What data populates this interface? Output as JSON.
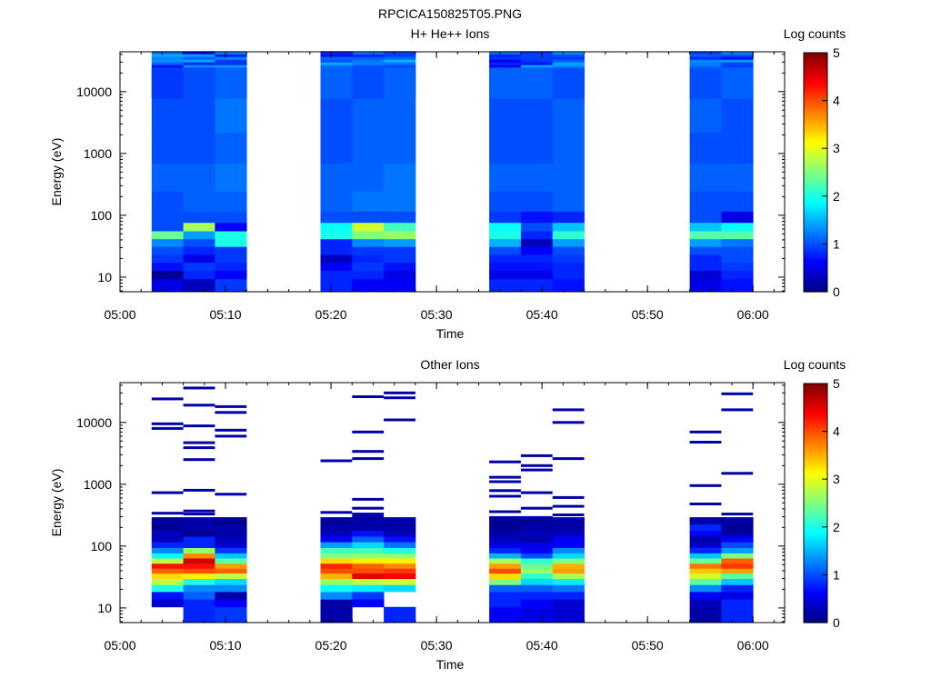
{
  "figure_title": "RPCICA150825T05.PNG",
  "chart_data": [
    {
      "type": "heatmap",
      "title": "H+ He++ Ions",
      "xlabel": "Time",
      "ylabel": "Energy (eV)",
      "x_ticks": [
        "05:00",
        "05:10",
        "05:20",
        "05:30",
        "05:40",
        "05:50",
        "06:00"
      ],
      "y_scale": "log",
      "y_ticks": [
        "10",
        "100",
        "1000",
        "10000"
      ],
      "colorbar": {
        "label": "Log counts",
        "ticks": [
          "0",
          "1",
          "2",
          "3",
          "4",
          "5"
        ],
        "range": [
          0,
          5
        ]
      },
      "time_blocks": [
        {
          "start": "05:03",
          "end": "05:06"
        },
        {
          "start": "05:06",
          "end": "05:09"
        },
        {
          "start": "05:09",
          "end": "05:12"
        },
        {
          "start": "05:19",
          "end": "05:22"
        },
        {
          "start": "05:22",
          "end": "05:25"
        },
        {
          "start": "05:25",
          "end": "05:28"
        },
        {
          "start": "05:35",
          "end": "05:38"
        },
        {
          "start": "05:38",
          "end": "05:41"
        },
        {
          "start": "05:41",
          "end": "05:44"
        },
        {
          "start": "05:54",
          "end": "05:57"
        },
        {
          "start": "05:57",
          "end": "06:00"
        }
      ],
      "energy_bins_eV": [
        8,
        11,
        15,
        20,
        27,
        36,
        48,
        65,
        90,
        150,
        400,
        1200,
        4000,
        15000,
        40000
      ],
      "log_counts": [
        [
          0.5,
          0.1,
          0.7,
          0.9,
          1.0,
          1.3,
          2.4,
          1.0,
          1.0,
          1.0,
          1.1,
          1.0,
          1.0,
          0.9,
          1.1
        ],
        [
          0.3,
          0.8,
          0.9,
          0.5,
          0.8,
          1.0,
          1.4,
          2.7,
          1.0,
          1.1,
          1.1,
          1.0,
          1.0,
          1.0,
          1.0
        ],
        [
          0.9,
          0.6,
          0.8,
          0.9,
          0.9,
          2.0,
          2.0,
          0.6,
          1.0,
          1.1,
          1.2,
          1.1,
          1.2,
          1.1,
          1.2
        ],
        [
          0.8,
          0.8,
          0.6,
          0.3,
          0.8,
          0.8,
          2.0,
          1.9,
          1.0,
          1.1,
          1.1,
          1.0,
          1.0,
          1.1,
          1.1
        ],
        [
          0.6,
          0.8,
          0.9,
          0.8,
          0.9,
          1.3,
          2.5,
          2.9,
          1.0,
          1.2,
          1.1,
          1.1,
          1.1,
          1.0,
          1.1
        ],
        [
          0.6,
          0.5,
          0.7,
          0.9,
          0.9,
          1.4,
          2.6,
          2.2,
          1.0,
          1.2,
          1.2,
          1.1,
          1.1,
          1.1,
          1.2
        ],
        [
          0.8,
          0.5,
          0.7,
          0.8,
          1.0,
          1.5,
          2.0,
          1.9,
          0.9,
          1.0,
          1.1,
          1.0,
          1.0,
          1.1,
          1.0
        ],
        [
          0.8,
          0.5,
          0.7,
          0.8,
          0.6,
          0.3,
          0.8,
          1.0,
          0.7,
          1.0,
          1.1,
          1.0,
          1.0,
          1.1,
          1.1
        ],
        [
          0.7,
          0.8,
          0.8,
          0.9,
          1.0,
          1.4,
          2.1,
          1.6,
          0.8,
          1.1,
          1.1,
          1.1,
          1.1,
          1.0,
          1.1
        ],
        [
          0.5,
          0.4,
          0.8,
          0.8,
          1.0,
          1.4,
          2.3,
          1.6,
          1.0,
          1.0,
          1.1,
          1.0,
          1.1,
          1.0,
          1.1
        ],
        [
          0.7,
          0.8,
          0.9,
          1.0,
          1.0,
          1.2,
          2.3,
          1.9,
          0.5,
          1.0,
          1.1,
          1.0,
          1.0,
          1.1,
          1.0
        ]
      ]
    },
    {
      "type": "heatmap",
      "title": "Other Ions",
      "xlabel": "Time",
      "ylabel": "Energy (eV)",
      "x_ticks": [
        "05:00",
        "05:10",
        "05:20",
        "05:30",
        "05:40",
        "05:50",
        "06:00"
      ],
      "y_scale": "log",
      "y_ticks": [
        "10",
        "100",
        "1000",
        "10000"
      ],
      "colorbar": {
        "label": "Log counts",
        "ticks": [
          "0",
          "1",
          "2",
          "3",
          "4",
          "5"
        ],
        "range": [
          0,
          5
        ]
      },
      "time_blocks": [
        {
          "start": "05:03",
          "end": "05:06"
        },
        {
          "start": "05:06",
          "end": "05:09"
        },
        {
          "start": "05:09",
          "end": "05:12"
        },
        {
          "start": "05:19",
          "end": "05:22"
        },
        {
          "start": "05:22",
          "end": "05:25"
        },
        {
          "start": "05:25",
          "end": "05:28"
        },
        {
          "start": "05:35",
          "end": "05:38"
        },
        {
          "start": "05:38",
          "end": "05:41"
        },
        {
          "start": "05:41",
          "end": "05:44"
        },
        {
          "start": "05:54",
          "end": "05:57"
        },
        {
          "start": "05:57",
          "end": "06:00"
        }
      ],
      "energy_bins_eV": [
        9,
        12,
        16,
        21,
        27,
        33,
        40,
        48,
        58,
        70,
        85,
        105,
        130,
        160,
        200,
        260
      ],
      "log_counts": [
        [
          null,
          0.4,
          0.7,
          2.0,
          2.8,
          3.3,
          3.9,
          4.3,
          2.8,
          1.9,
          1.3,
          0.8,
          0.3,
          0.3,
          0.1,
          0.1
        ],
        [
          0.8,
          0.8,
          1.1,
          1.3,
          2.0,
          3.2,
          4.0,
          4.3,
          4.6,
          3.7,
          2.6,
          0.8,
          0.8,
          0.1,
          0.2,
          0.2
        ],
        [
          0.9,
          0.6,
          0.2,
          1.3,
          1.7,
          2.8,
          3.9,
          3.6,
          2.3,
          1.6,
          0.9,
          0.4,
          0.3,
          0.2,
          0.2,
          0.0
        ],
        [
          0.2,
          0.2,
          1.3,
          1.9,
          2.6,
          3.5,
          4.0,
          4.2,
          3.3,
          2.5,
          2.2,
          1.4,
          0.6,
          0.3,
          0.2,
          0.1
        ],
        [
          null,
          0.6,
          0.9,
          1.8,
          2.8,
          4.5,
          4.0,
          3.9,
          3.2,
          2.6,
          2.2,
          1.7,
          1.1,
          0.7,
          0.2,
          0.2
        ],
        [
          0.8,
          null,
          null,
          1.7,
          2.9,
          4.4,
          4.1,
          3.7,
          3.2,
          2.6,
          2.0,
          1.2,
          0.7,
          0.3,
          0.2,
          0.2
        ],
        [
          0.6,
          0.8,
          0.8,
          1.1,
          2.5,
          3.3,
          4.0,
          3.6,
          2.7,
          1.5,
          0.8,
          0.5,
          0.3,
          0.2,
          0.1,
          0.1
        ],
        [
          0.5,
          0.6,
          0.8,
          1.1,
          1.7,
          2.1,
          2.6,
          2.4,
          2.1,
          1.0,
          0.6,
          0.5,
          0.2,
          0.3,
          0.2,
          0.1
        ],
        [
          0.4,
          0.4,
          0.8,
          1.2,
          1.8,
          2.7,
          3.6,
          3.5,
          2.5,
          1.7,
          1.3,
          0.6,
          0.6,
          0.3,
          0.2,
          0.2
        ],
        [
          0.2,
          0.3,
          0.6,
          1.3,
          2.3,
          2.9,
          3.4,
          3.8,
          2.4,
          1.6,
          0.8,
          0.4,
          0.2,
          0.6,
          0.8,
          0.2
        ],
        [
          0.8,
          0.8,
          0.5,
          0.8,
          1.6,
          2.3,
          3.6,
          4.1,
          3.9,
          2.5,
          1.4,
          1.0,
          0.6,
          0.2,
          0.1,
          0.2
        ]
      ],
      "sparse_lines_eV": [
        [
          24000,
          9500,
          8000,
          730,
          340,
          240
        ],
        [
          36000,
          19000,
          8800,
          4700,
          3900,
          2500,
          800,
          370,
          330
        ],
        [
          18000,
          14500,
          7500,
          6000,
          690,
          270
        ],
        [
          2400,
          350,
          270
        ],
        [
          26000,
          7000,
          3400,
          2600,
          570,
          410,
          330,
          300,
          270
        ],
        [
          30000,
          25000,
          11000,
          270
        ],
        [
          2300,
          1300,
          1100,
          790,
          640,
          360,
          290
        ],
        [
          2900,
          2000,
          1700,
          730,
          410,
          290,
          210
        ],
        [
          16000,
          10000,
          2600,
          610,
          440,
          320
        ],
        [
          7000,
          4800,
          950,
          480,
          250
        ],
        [
          29000,
          16000,
          1500,
          330,
          260
        ]
      ]
    }
  ]
}
